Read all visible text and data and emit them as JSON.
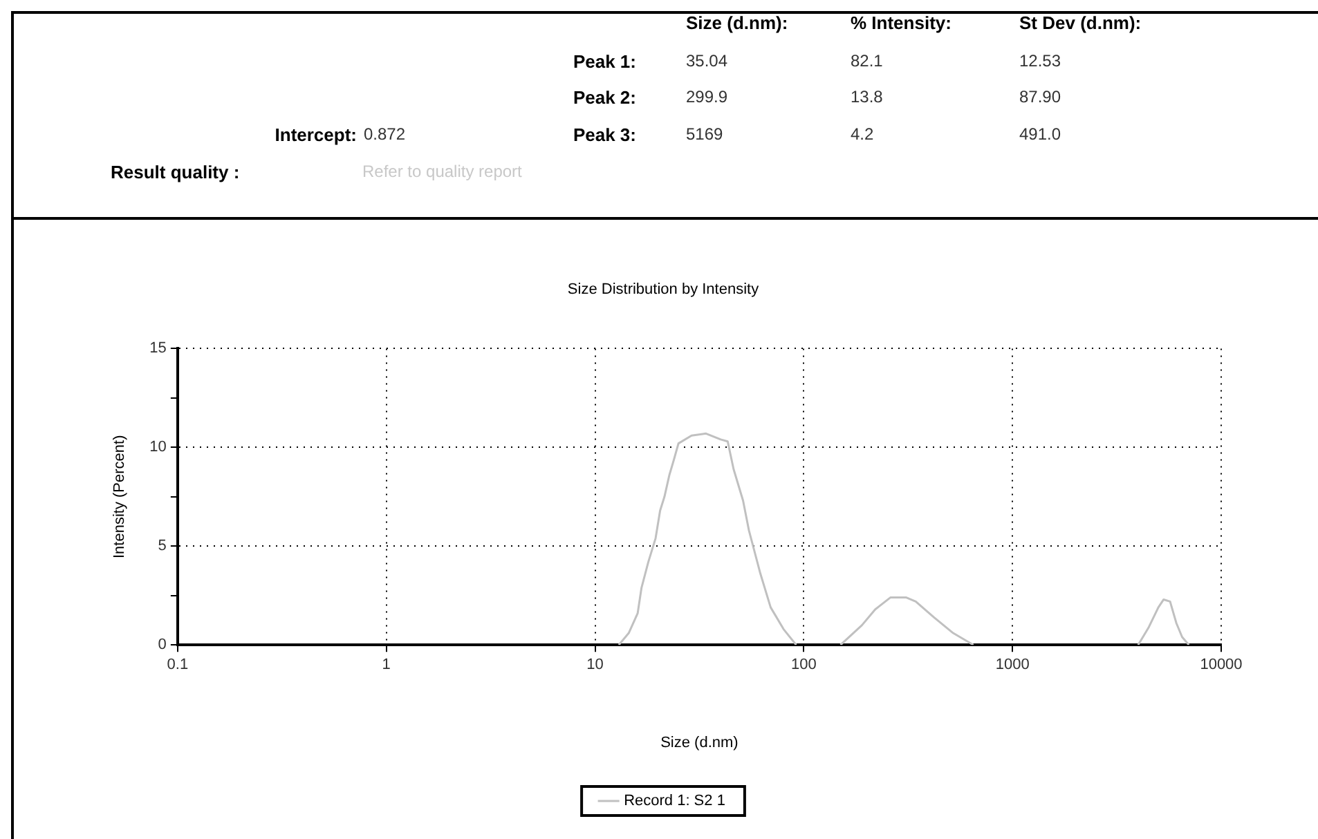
{
  "chart_data": {
    "type": "line",
    "title": "Size Distribution by Intensity",
    "xlabel": "Size (d.nm)",
    "ylabel": "Intensity (Percent)",
    "log": "x",
    "xlim": [
      0.1,
      10000
    ],
    "xticks": [
      0.1,
      1,
      10,
      100,
      1000,
      10000
    ],
    "ylim": [
      0,
      15
    ],
    "yticks": [
      0,
      {
        "value": 2.5,
        "label": null
      },
      5,
      {
        "value": 7.5,
        "label": null
      },
      10,
      {
        "value": 12.5,
        "label": null
      },
      15
    ],
    "grid": true,
    "legend": "bottom",
    "x": [
      13,
      14.5,
      16,
      16.7,
      18,
      19.5,
      20.5,
      21.5,
      22.7,
      23.9,
      25.1,
      29,
      34,
      40,
      43.2,
      46.1,
      51.2,
      54.6,
      62,
      69.4,
      80,
      92,
      110,
      150,
      190,
      220,
      260,
      310,
      344,
      420,
      520,
      650,
      1500,
      4000,
      4500,
      5000,
      5300,
      5690,
      6100,
      6500,
      7000
    ],
    "series": [
      {
        "name": "Record 1: S2 1",
        "color": "#c0c0c0",
        "values": [
          0,
          0.6,
          1.6,
          2.9,
          4.2,
          5.4,
          6.8,
          7.5,
          8.6,
          9.4,
          10.2,
          10.6,
          10.7,
          10.4,
          10.3,
          8.9,
          7.3,
          5.8,
          3.6,
          1.9,
          0.8,
          0,
          null,
          0,
          1.0,
          1.8,
          2.4,
          2.4,
          2.2,
          1.4,
          0.6,
          0,
          null,
          0,
          0.9,
          1.9,
          2.3,
          2.2,
          1.1,
          0.4,
          0
        ]
      }
    ],
    "annotations": [
      "Size (d.nm):",
      "% Intensity:",
      "St Dev (d.nm):",
      "Peak 1:",
      "35.04",
      "82.1",
      "12.53",
      "Peak 2:",
      "299.9",
      "13.8",
      "87.90",
      "Peak 3:",
      "5169",
      "4.2",
      "491.0",
      "Intercept:",
      "0.872",
      "Result quality :",
      "Refer to quality report"
    ]
  }
}
